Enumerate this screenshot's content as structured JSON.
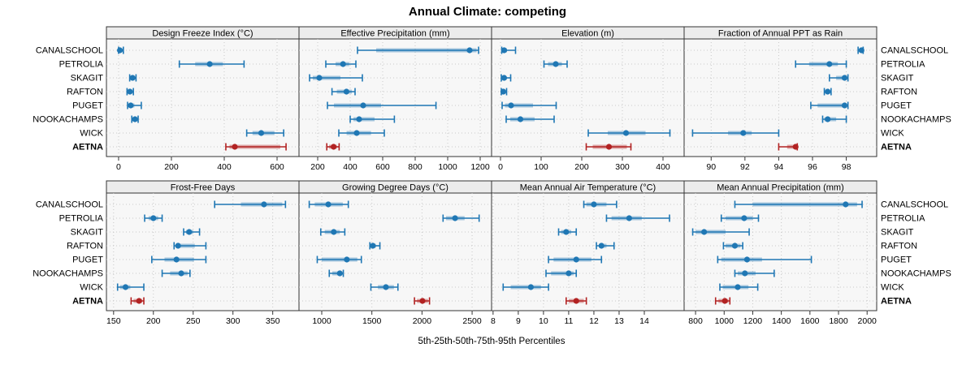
{
  "title": "Annual Climate: competing",
  "footer_label": "5th-25th-50th-75th-95th Percentiles",
  "colors": {
    "series": "#1f77b4",
    "highlight": "#b22222",
    "strip_bg": "#ececec",
    "panel_bg": "#f7f7f7",
    "grid": "#c8c8c8",
    "border": "#333333",
    "text": "#000000"
  },
  "sites": [
    "CANALSCHOOL",
    "PETROLIA",
    "SKAGIT",
    "RAFTON",
    "PUGET",
    "NOOKACHAMPS",
    "WICK",
    "AETNA"
  ],
  "highlight_site": "AETNA",
  "chart_data": {
    "type": "dotplot-percentiles",
    "percentile_labels": [
      "5th",
      "25th",
      "50th",
      "75th",
      "95th"
    ],
    "legend_position": "none",
    "grid": "dotted",
    "panels": [
      {
        "title": "Design Freeze Index (°C)",
        "ticks": [
          0,
          200,
          400,
          600
        ],
        "xlim": [
          -46,
          683
        ],
        "values": {
          "CANALSCHOOL": [
            0,
            2,
            5,
            9,
            18
          ],
          "PETROLIA": [
            230,
            290,
            345,
            395,
            475
          ],
          "SKAGIT": [
            42,
            48,
            53,
            58,
            66
          ],
          "RAFTON": [
            32,
            38,
            43,
            48,
            56
          ],
          "PUGET": [
            34,
            40,
            46,
            60,
            86
          ],
          "NOOKACHAMPS": [
            50,
            57,
            62,
            68,
            74
          ],
          "WICK": [
            485,
            507,
            540,
            590,
            625
          ],
          "AETNA": [
            406,
            420,
            440,
            612,
            634
          ]
        }
      },
      {
        "title": "Effective Precipitation (mm)",
        "ticks": [
          200,
          400,
          600,
          800,
          1000,
          1200
        ],
        "xlim": [
          85,
          1270
        ],
        "values": {
          "CANALSCHOOL": [
            445,
            560,
            1135,
            1178,
            1190
          ],
          "PETROLIA": [
            250,
            310,
            356,
            394,
            435
          ],
          "SKAGIT": [
            150,
            170,
            210,
            340,
            475
          ],
          "RAFTON": [
            288,
            318,
            377,
            410,
            430
          ],
          "PUGET": [
            260,
            300,
            480,
            590,
            928
          ],
          "NOOKACHAMPS": [
            400,
            420,
            455,
            550,
            672
          ],
          "WICK": [
            330,
            378,
            440,
            528,
            610
          ],
          "AETNA": [
            256,
            270,
            298,
            318,
            332
          ]
        }
      },
      {
        "title": "Elevation (m)",
        "ticks": [
          0,
          100,
          200,
          300,
          400
        ],
        "xlim": [
          -22,
          452
        ],
        "values": {
          "CANALSCHOOL": [
            3,
            5,
            9,
            16,
            37
          ],
          "PETROLIA": [
            107,
            117,
            136,
            151,
            164
          ],
          "SKAGIT": [
            2,
            5,
            9,
            14,
            25
          ],
          "RAFTON": [
            2,
            4,
            7,
            10,
            15
          ],
          "PUGET": [
            4,
            11,
            26,
            80,
            137
          ],
          "NOOKACHAMPS": [
            14,
            24,
            49,
            84,
            132
          ],
          "WICK": [
            216,
            264,
            309,
            357,
            417
          ],
          "AETNA": [
            211,
            227,
            267,
            311,
            321
          ]
        }
      },
      {
        "title": "Fraction of Annual PPT as Rain",
        "ticks": [
          90,
          92,
          94,
          96,
          98
        ],
        "xlim": [
          88.4,
          99.8
        ],
        "values": {
          "CANALSCHOOL": [
            98.7,
            98.8,
            98.9,
            99.0,
            99.0
          ],
          "PETROLIA": [
            95.0,
            95.8,
            97.0,
            97.5,
            98.0
          ],
          "SKAGIT": [
            97.0,
            97.4,
            97.9,
            98.0,
            98.1
          ],
          "RAFTON": [
            96.7,
            96.8,
            96.9,
            97.0,
            97.1
          ],
          "PUGET": [
            95.9,
            96.3,
            97.9,
            98.0,
            98.1
          ],
          "NOOKACHAMPS": [
            96.6,
            96.7,
            96.9,
            97.4,
            98.0
          ],
          "WICK": [
            88.9,
            91.0,
            91.9,
            92.4,
            94.0
          ],
          "AETNA": [
            94.0,
            94.5,
            95.0,
            95.0,
            95.1
          ]
        }
      },
      {
        "title": "Frost-Free Days",
        "ticks": [
          150,
          200,
          250,
          300,
          350
        ],
        "xlim": [
          141,
          383
        ],
        "values": {
          "CANALSCHOOL": [
            277,
            310,
            339,
            362,
            366
          ],
          "PETROLIA": [
            189,
            194,
            200,
            206,
            211
          ],
          "SKAGIT": [
            238,
            241,
            245,
            250,
            258
          ],
          "RAFTON": [
            226,
            228,
            231,
            252,
            266
          ],
          "PUGET": [
            198,
            214,
            229,
            251,
            266
          ],
          "NOOKACHAMPS": [
            211,
            221,
            235,
            243,
            246
          ],
          "WICK": [
            155,
            158,
            165,
            171,
            188
          ],
          "AETNA": [
            172,
            175,
            182,
            186,
            188
          ]
        }
      },
      {
        "title": "Growing Degree Days (°C)",
        "ticks": [
          1000,
          1500,
          2000,
          2500
        ],
        "xlim": [
          773,
          2694
        ],
        "values": {
          "CANALSCHOOL": [
            875,
            930,
            1065,
            1210,
            1265
          ],
          "PETROLIA": [
            2210,
            2240,
            2330,
            2425,
            2570
          ],
          "SKAGIT": [
            990,
            1030,
            1120,
            1180,
            1230
          ],
          "RAFTON": [
            1480,
            1495,
            1510,
            1540,
            1580
          ],
          "PUGET": [
            955,
            1000,
            1250,
            1355,
            1395
          ],
          "NOOKACHAMPS": [
            1075,
            1105,
            1180,
            1205,
            1215
          ],
          "WICK": [
            1490,
            1560,
            1640,
            1720,
            1760
          ],
          "AETNA": [
            1925,
            1950,
            2005,
            2060,
            2075
          ]
        }
      },
      {
        "title": "Mean Annual Air Temperature (°C)",
        "ticks": [
          8,
          9,
          10,
          11,
          12,
          13,
          14
        ],
        "xlim": [
          7.94,
          15.58
        ],
        "values": {
          "CANALSCHOOL": [
            11.6,
            11.7,
            12.0,
            12.5,
            12.9
          ],
          "PETROLIA": [
            12.5,
            12.7,
            13.4,
            13.9,
            15.0
          ],
          "SKAGIT": [
            10.6,
            10.7,
            10.9,
            11.1,
            11.3
          ],
          "RAFTON": [
            12.1,
            12.2,
            12.3,
            12.5,
            12.8
          ],
          "PUGET": [
            10.2,
            10.4,
            11.3,
            11.9,
            12.3
          ],
          "NOOKACHAMPS": [
            10.1,
            10.3,
            11.0,
            11.2,
            11.3
          ],
          "WICK": [
            8.4,
            8.7,
            9.5,
            9.9,
            10.2
          ],
          "AETNA": [
            10.9,
            11.0,
            11.3,
            11.6,
            11.7
          ]
        }
      },
      {
        "title": "Mean Annual Precipitation (mm)",
        "ticks": [
          800,
          1000,
          1200,
          1400,
          1600,
          1800,
          2000
        ],
        "xlim": [
          720,
          2067
        ],
        "values": {
          "CANALSCHOOL": [
            1075,
            1200,
            1850,
            1930,
            1965
          ],
          "PETROLIA": [
            980,
            1010,
            1140,
            1200,
            1240
          ],
          "SKAGIT": [
            780,
            800,
            860,
            1010,
            1175
          ],
          "RAFTON": [
            995,
            1010,
            1075,
            1115,
            1130
          ],
          "PUGET": [
            955,
            980,
            1160,
            1265,
            1610
          ],
          "NOOKACHAMPS": [
            1075,
            1095,
            1145,
            1220,
            1350
          ],
          "WICK": [
            970,
            990,
            1095,
            1170,
            1235
          ],
          "AETNA": [
            940,
            960,
            1005,
            1030,
            1040
          ]
        }
      }
    ]
  }
}
